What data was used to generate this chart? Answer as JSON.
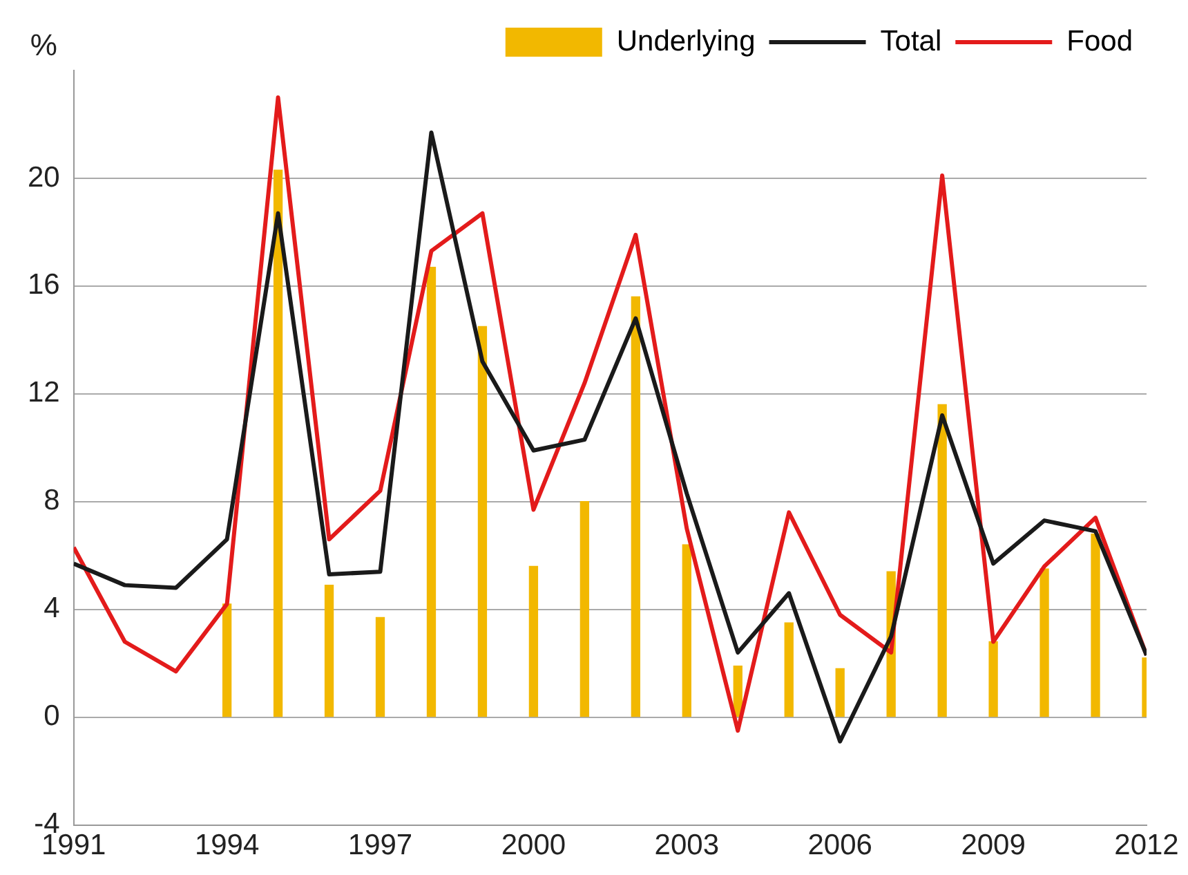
{
  "chart_data": {
    "type": "line",
    "ylabel": "%",
    "x": [
      1991,
      1992,
      1993,
      1994,
      1995,
      1996,
      1997,
      1998,
      1999,
      2000,
      2001,
      2002,
      2003,
      2004,
      2005,
      2006,
      2007,
      2008,
      2009,
      2010,
      2011,
      2012
    ],
    "series": [
      {
        "name": "Underlying",
        "type": "bar",
        "color": "#f2b800",
        "values": [
          null,
          null,
          null,
          4.2,
          20.3,
          4.9,
          3.7,
          16.7,
          14.5,
          5.6,
          8.0,
          15.6,
          6.4,
          1.9,
          3.5,
          1.8,
          5.4,
          11.6,
          2.8,
          5.5,
          6.8,
          2.2
        ]
      },
      {
        "name": "Total",
        "color": "#1a1a1a",
        "values": [
          5.7,
          4.9,
          4.8,
          6.6,
          18.7,
          5.3,
          5.4,
          21.7,
          13.2,
          9.9,
          10.3,
          14.8,
          8.3,
          2.4,
          4.6,
          -0.9,
          3.0,
          11.2,
          5.7,
          7.3,
          6.9,
          2.3
        ]
      },
      {
        "name": "Food",
        "color": "#e31b1b",
        "values": [
          6.3,
          2.8,
          1.7,
          4.2,
          23.0,
          6.6,
          8.4,
          17.3,
          18.7,
          7.7,
          12.4,
          17.9,
          7.0,
          -0.5,
          7.6,
          3.8,
          2.4,
          20.1,
          2.8,
          5.6,
          7.4,
          2.3
        ]
      }
    ],
    "xlim": [
      1991,
      2012
    ],
    "xticks": [
      1991,
      1994,
      1997,
      2000,
      2003,
      2006,
      2009,
      2012
    ],
    "ylim": [
      -4,
      24
    ],
    "yticks": [
      -4,
      0,
      4,
      8,
      12,
      16,
      20
    ],
    "grid": "y",
    "legend": "top right",
    "marker": "none"
  }
}
